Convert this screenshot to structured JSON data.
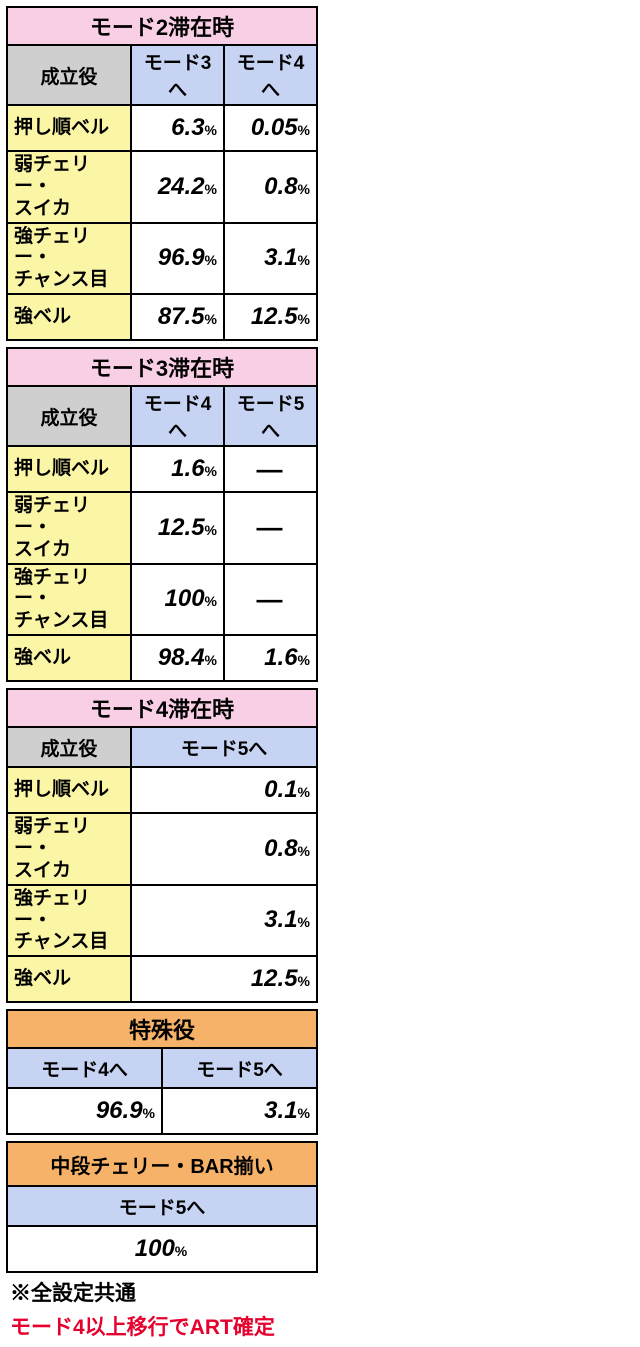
{
  "colors": {
    "pink": "#f9cfe6",
    "orange": "#f7b26a",
    "gray": "#cfcfcf",
    "blue": "#c7d3f2",
    "yellow": "#fbf5a6",
    "red": "#e6002d"
  },
  "mode2": {
    "title": "モード2滞在時",
    "headers": {
      "role": "成立役",
      "c1": "モード3へ",
      "c2": "モード4へ"
    },
    "rows": [
      {
        "label": "押し順ベル",
        "v1": "6.3",
        "v2": "0.05",
        "h": "h1"
      },
      {
        "label": "弱チェリー・\nスイカ",
        "v1": "24.2",
        "v2": "0.8",
        "h": "h2"
      },
      {
        "label": "強チェリー・\nチャンス目",
        "v1": "96.9",
        "v2": "3.1",
        "h": "h2"
      },
      {
        "label": "強ベル",
        "v1": "87.5",
        "v2": "12.5",
        "h": "h1"
      }
    ]
  },
  "mode3": {
    "title": "モード3滞在時",
    "headers": {
      "role": "成立役",
      "c1": "モード4へ",
      "c2": "モード5へ"
    },
    "rows": [
      {
        "label": "押し順ベル",
        "v1": "1.6",
        "v2": "—",
        "h": "h1"
      },
      {
        "label": "弱チェリー・\nスイカ",
        "v1": "12.5",
        "v2": "—",
        "h": "h2"
      },
      {
        "label": "強チェリー・\nチャンス目",
        "v1": "100",
        "v2": "—",
        "h": "h2"
      },
      {
        "label": "強ベル",
        "v1": "98.4",
        "v2": "1.6",
        "h": "h1"
      }
    ]
  },
  "mode4": {
    "title": "モード4滞在時",
    "headers": {
      "role": "成立役",
      "c1": "モード5へ"
    },
    "rows": [
      {
        "label": "押し順ベル",
        "v1": "0.1",
        "h": "h1"
      },
      {
        "label": "弱チェリー・\nスイカ",
        "v1": "0.8",
        "h": "h2"
      },
      {
        "label": "強チェリー・\nチャンス目",
        "v1": "3.1",
        "h": "h2"
      },
      {
        "label": "強ベル",
        "v1": "12.5",
        "h": "h1"
      }
    ]
  },
  "special": {
    "title": "特殊役",
    "headers": {
      "c1": "モード4へ",
      "c2": "モード5へ"
    },
    "row": {
      "v1": "96.9",
      "v2": "3.1"
    }
  },
  "chudan": {
    "title": "中段チェリー・BAR揃い",
    "header": "モード5へ",
    "value": "100"
  },
  "notes": {
    "line1": "※全設定共通",
    "line2": "モード4以上移行でART確定"
  },
  "pct": "%"
}
